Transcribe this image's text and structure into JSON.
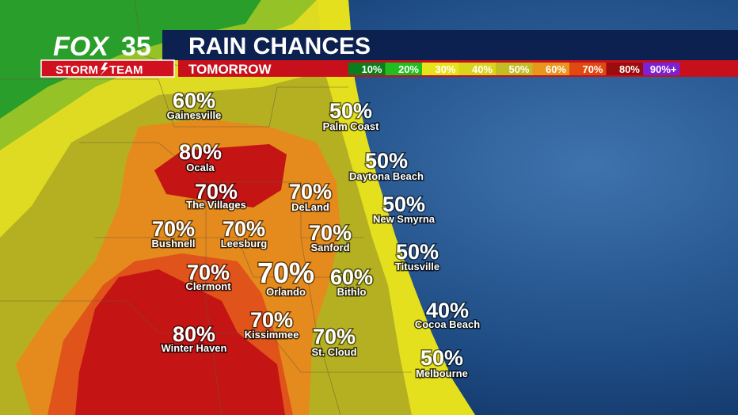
{
  "header": {
    "logo": {
      "brand": "FOX",
      "channel": "35",
      "team_left": "STORM",
      "team_right": "TEAM"
    },
    "title": "RAIN CHANCES",
    "subtitle": "TOMORROW"
  },
  "legend": [
    {
      "label": "10%",
      "color": "#0c7d1c"
    },
    {
      "label": "20%",
      "color": "#1fbf1f"
    },
    {
      "label": "30%",
      "color": "#e7e31a"
    },
    {
      "label": "40%",
      "color": "#d8d51d"
    },
    {
      "label": "50%",
      "color": "#c2bd22"
    },
    {
      "label": "60%",
      "color": "#e9961c"
    },
    {
      "label": "70%",
      "color": "#e04a12"
    },
    {
      "label": "80%",
      "color": "#9b0c0c"
    },
    {
      "label": "90%+",
      "color": "#7b22d6"
    }
  ],
  "cities": [
    {
      "name": "Gainesville",
      "chance": "60%"
    },
    {
      "name": "Palm Coast",
      "chance": "50%"
    },
    {
      "name": "Ocala",
      "chance": "80%"
    },
    {
      "name": "Daytona Beach",
      "chance": "50%"
    },
    {
      "name": "The Villages",
      "chance": "70%"
    },
    {
      "name": "DeLand",
      "chance": "70%"
    },
    {
      "name": "New Smyrna",
      "chance": "50%"
    },
    {
      "name": "Bushnell",
      "chance": "70%"
    },
    {
      "name": "Leesburg",
      "chance": "70%"
    },
    {
      "name": "Sanford",
      "chance": "70%"
    },
    {
      "name": "Titusville",
      "chance": "50%"
    },
    {
      "name": "Clermont",
      "chance": "70%"
    },
    {
      "name": "Orlando",
      "chance": "70%"
    },
    {
      "name": "Bithlo",
      "chance": "60%"
    },
    {
      "name": "Cocoa Beach",
      "chance": "40%"
    },
    {
      "name": "Kissimmee",
      "chance": "70%"
    },
    {
      "name": "Winter Haven",
      "chance": "80%"
    },
    {
      "name": "St. Cloud",
      "chance": "70%"
    },
    {
      "name": "Melbourne",
      "chance": "50%"
    }
  ]
}
